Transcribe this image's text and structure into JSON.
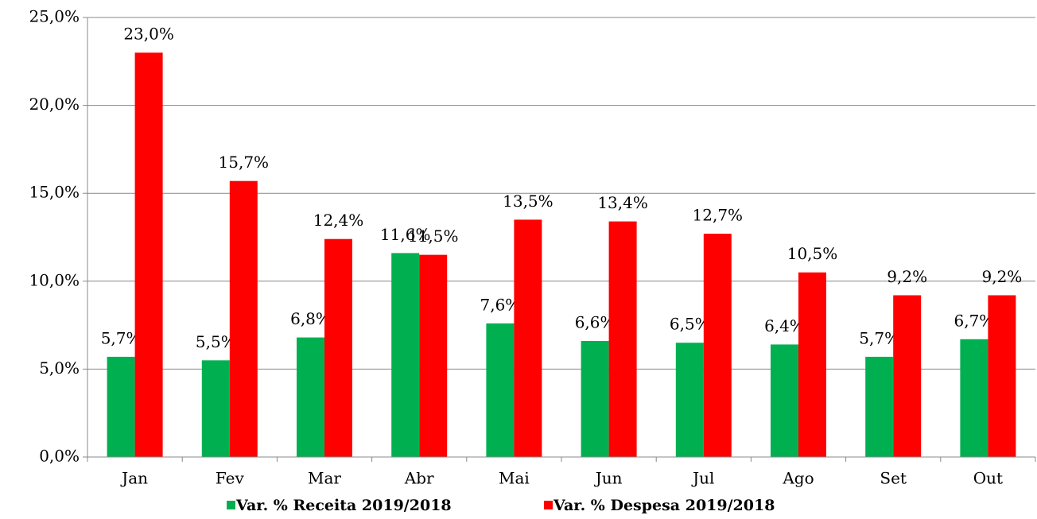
{
  "chart_data": {
    "type": "bar",
    "categories": [
      "Jan",
      "Fev",
      "Mar",
      "Abr",
      "Mai",
      "Jun",
      "Jul",
      "Ago",
      "Set",
      "Out"
    ],
    "series": [
      {
        "name": "Var. % Receita 2019/2018",
        "color": "#00b050",
        "values": [
          5.7,
          5.5,
          6.8,
          11.6,
          7.6,
          6.6,
          6.5,
          6.4,
          5.7,
          6.7
        ],
        "value_labels": [
          "5,7%",
          "5,5%",
          "6,8%",
          "11,6%",
          "7,6%",
          "6,6%",
          "6,5%",
          "6,4%",
          "5,7%",
          "6,7%"
        ]
      },
      {
        "name": "Var. % Despesa 2019/2018",
        "color": "#ff0000",
        "values": [
          23.0,
          15.7,
          12.4,
          11.5,
          13.5,
          13.4,
          12.7,
          10.5,
          9.2,
          9.2
        ],
        "value_labels": [
          "23,0%",
          "15,7%",
          "12,4%",
          "11,5%",
          "13,5%",
          "13,4%",
          "12,7%",
          "10,5%",
          "9,2%",
          "9,2%"
        ]
      }
    ],
    "ylim": [
      0,
      25
    ],
    "yticks": [
      {
        "value": 0,
        "label": "0,0%"
      },
      {
        "value": 5,
        "label": "5,0%"
      },
      {
        "value": 10,
        "label": "10,0%"
      },
      {
        "value": 15,
        "label": "15,0%"
      },
      {
        "value": 20,
        "label": "20,0%"
      },
      {
        "value": 25,
        "label": "25,0%"
      }
    ],
    "grid": true,
    "legend": "bottom"
  }
}
